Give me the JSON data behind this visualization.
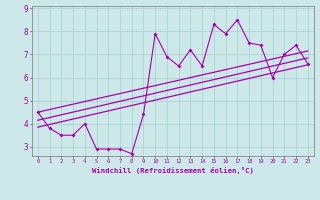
{
  "scatter_x": [
    0,
    1,
    2,
    3,
    4,
    5,
    6,
    7,
    8,
    9,
    10,
    11,
    12,
    13,
    14,
    15,
    16,
    17,
    18,
    19,
    20,
    21,
    22,
    23
  ],
  "scatter_y": [
    4.5,
    3.8,
    3.5,
    3.5,
    4.0,
    2.9,
    2.9,
    2.9,
    2.7,
    4.4,
    7.9,
    6.9,
    6.5,
    7.2,
    6.5,
    8.3,
    7.9,
    8.5,
    7.5,
    7.4,
    6.0,
    7.0,
    7.4,
    6.6
  ],
  "line1_x": [
    0,
    23
  ],
  "line1_y": [
    3.85,
    6.55
  ],
  "line2_x": [
    0,
    23
  ],
  "line2_y": [
    4.15,
    6.85
  ],
  "line3_x": [
    0,
    23
  ],
  "line3_y": [
    4.5,
    7.15
  ],
  "xlim": [
    -0.5,
    23.5
  ],
  "ylim": [
    2.6,
    9.1
  ],
  "xtick_vals": [
    0,
    1,
    2,
    3,
    4,
    5,
    6,
    7,
    8,
    9,
    10,
    11,
    12,
    13,
    14,
    15,
    16,
    17,
    18,
    19,
    20,
    21,
    22,
    23
  ],
  "xtick_labels": [
    "0",
    "1",
    "2",
    "3",
    "4",
    "5",
    "6",
    "7",
    "8",
    "9",
    "10",
    "11",
    "12",
    "13",
    "14",
    "15",
    "16",
    "17",
    "18",
    "19",
    "20",
    "21",
    "22",
    "23"
  ],
  "ytick_vals": [
    3,
    4,
    5,
    6,
    7,
    8,
    9
  ],
  "ytick_labels": [
    "3",
    "4",
    "5",
    "6",
    "7",
    "8",
    "9"
  ],
  "xlabel": "Windchill (Refroidissement éolien,°C)",
  "bg_color": "#cce8e8",
  "line_color": "#aa00aa",
  "grid_color": "#aad4d4",
  "xlabel_color": "#aa00aa",
  "tick_color": "#aa00aa",
  "spine_color": "#888888"
}
